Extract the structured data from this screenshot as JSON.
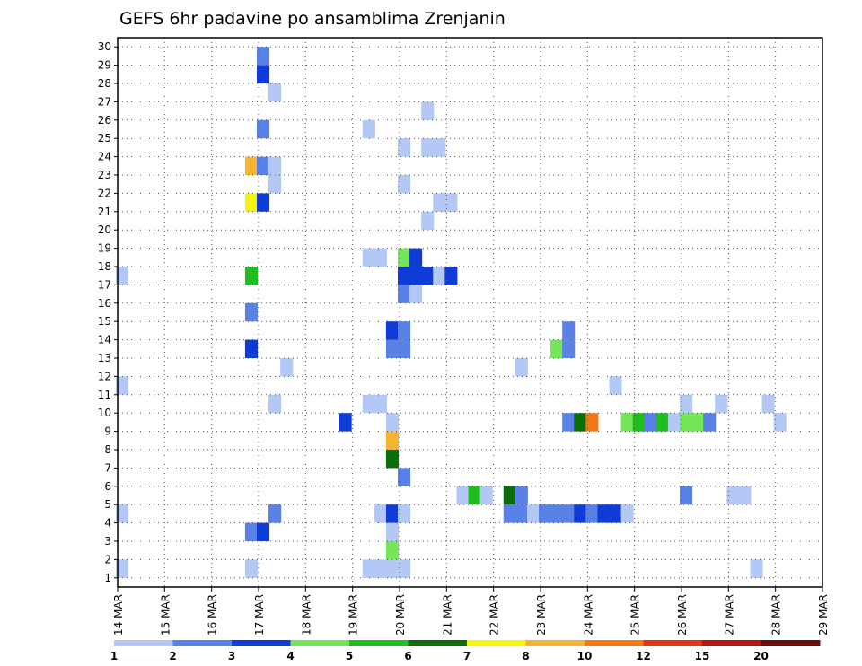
{
  "chart_data": {
    "type": "heatmap",
    "title": "GEFS 6hr padavine po ansamblima Zrenjanin",
    "xlabel": "",
    "ylabel": "",
    "x_tick_labels": [
      "14 MAR",
      "15 MAR",
      "16 MAR",
      "17 MAR",
      "18 MAR",
      "19 MAR",
      "20 MAR",
      "21 MAR",
      "22 MAR",
      "23 MAR",
      "24 MAR",
      "25 MAR",
      "26 MAR",
      "27 MAR",
      "28 MAR",
      "29 MAR"
    ],
    "y_tick_labels": [
      "1",
      "2",
      "3",
      "4",
      "5",
      "6",
      "7",
      "8",
      "9",
      "10",
      "11",
      "12",
      "13",
      "14",
      "15",
      "16",
      "17",
      "18",
      "19",
      "20",
      "21",
      "22",
      "23",
      "24",
      "25",
      "26",
      "27",
      "28",
      "29",
      "30"
    ],
    "xlim": [
      0,
      60
    ],
    "ylim": [
      0,
      30
    ],
    "grid": true,
    "x_unit": "6-hour step from 14 MAR 00Z",
    "y_unit": "ensemble member",
    "color_scale": {
      "bounds": [
        1,
        2,
        3,
        4,
        5,
        6,
        7,
        8,
        10,
        12,
        15,
        20
      ],
      "labels": [
        "1",
        "2",
        "3",
        "4",
        "5",
        "6",
        "7",
        "8",
        "10",
        "12",
        "15",
        "20"
      ],
      "colors": [
        "#b4c8f5",
        "#5a82e6",
        "#0f3cd7",
        "#73e65a",
        "#1ebe1e",
        "#0a6e0a",
        "#f5f50a",
        "#f5b432",
        "#f57814",
        "#e63214",
        "#b41414",
        "#6e0a0a"
      ]
    },
    "cells": [
      [
        0,
        0,
        0
      ],
      [
        0,
        3,
        0
      ],
      [
        0,
        10,
        0
      ],
      [
        0,
        16,
        0
      ],
      [
        11,
        0,
        0
      ],
      [
        11,
        2,
        1
      ],
      [
        11,
        14,
        1
      ],
      [
        11,
        12,
        2
      ],
      [
        11,
        16,
        4
      ],
      [
        11,
        20,
        6
      ],
      [
        11,
        22,
        7
      ],
      [
        12,
        2,
        2
      ],
      [
        12,
        20,
        2
      ],
      [
        12,
        22,
        1
      ],
      [
        12,
        24,
        1
      ],
      [
        12,
        27,
        2
      ],
      [
        12,
        28,
        1
      ],
      [
        13,
        9,
        0
      ],
      [
        13,
        3,
        0
      ],
      [
        13,
        3,
        1
      ],
      [
        13,
        21,
        0
      ],
      [
        13,
        22,
        0
      ],
      [
        13,
        26,
        0
      ],
      [
        14,
        11,
        0
      ],
      [
        19,
        8,
        2
      ],
      [
        21,
        0,
        0
      ],
      [
        21,
        9,
        0
      ],
      [
        21,
        17,
        0
      ],
      [
        21,
        24,
        0
      ],
      [
        22,
        0,
        0
      ],
      [
        22,
        3,
        0
      ],
      [
        22,
        9,
        0
      ],
      [
        22,
        17,
        0
      ],
      [
        23,
        0,
        0
      ],
      [
        23,
        1,
        3
      ],
      [
        23,
        2,
        0
      ],
      [
        23,
        3,
        2
      ],
      [
        23,
        6,
        5
      ],
      [
        23,
        7,
        7
      ],
      [
        23,
        8,
        0
      ],
      [
        23,
        12,
        1
      ],
      [
        23,
        13,
        2
      ],
      [
        24,
        0,
        0
      ],
      [
        24,
        3,
        0
      ],
      [
        24,
        5,
        1
      ],
      [
        24,
        12,
        1
      ],
      [
        24,
        13,
        1
      ],
      [
        24,
        15,
        1
      ],
      [
        24,
        16,
        2
      ],
      [
        24,
        17,
        3
      ],
      [
        24,
        21,
        0
      ],
      [
        24,
        23,
        0
      ],
      [
        25,
        16,
        2
      ],
      [
        25,
        15,
        0
      ],
      [
        25,
        17,
        2
      ],
      [
        26,
        16,
        2
      ],
      [
        26,
        19,
        0
      ],
      [
        26,
        25,
        0
      ],
      [
        26,
        23,
        0
      ],
      [
        27,
        16,
        0
      ],
      [
        27,
        20,
        0
      ],
      [
        27,
        23,
        0
      ],
      [
        28,
        16,
        2
      ],
      [
        28,
        20,
        0
      ],
      [
        29,
        4,
        0
      ],
      [
        30,
        4,
        4
      ],
      [
        31,
        4,
        0
      ],
      [
        33,
        3,
        1
      ],
      [
        33,
        4,
        5
      ],
      [
        34,
        3,
        1
      ],
      [
        34,
        4,
        1
      ],
      [
        34,
        11,
        0
      ],
      [
        35,
        3,
        0
      ],
      [
        36,
        3,
        1
      ],
      [
        37,
        3,
        1
      ],
      [
        37,
        12,
        3
      ],
      [
        38,
        3,
        1
      ],
      [
        38,
        8,
        1
      ],
      [
        38,
        12,
        1
      ],
      [
        38,
        13,
        1
      ],
      [
        39,
        3,
        2
      ],
      [
        39,
        8,
        5
      ],
      [
        40,
        3,
        1
      ],
      [
        40,
        8,
        8
      ],
      [
        41,
        3,
        2
      ],
      [
        42,
        3,
        2
      ],
      [
        42,
        10,
        0
      ],
      [
        43,
        3,
        0
      ],
      [
        43,
        8,
        3
      ],
      [
        44,
        8,
        4
      ],
      [
        45,
        8,
        1
      ],
      [
        46,
        8,
        4
      ],
      [
        47,
        8,
        0
      ],
      [
        48,
        8,
        3
      ],
      [
        48,
        4,
        1
      ],
      [
        48,
        9,
        0
      ],
      [
        49,
        8,
        3
      ],
      [
        50,
        8,
        1
      ],
      [
        51,
        9,
        0
      ],
      [
        52,
        4,
        0
      ],
      [
        53,
        4,
        0
      ],
      [
        54,
        0,
        0
      ],
      [
        55,
        9,
        0
      ],
      [
        56,
        8,
        0
      ]
    ],
    "cells_detail_note": ""
  }
}
